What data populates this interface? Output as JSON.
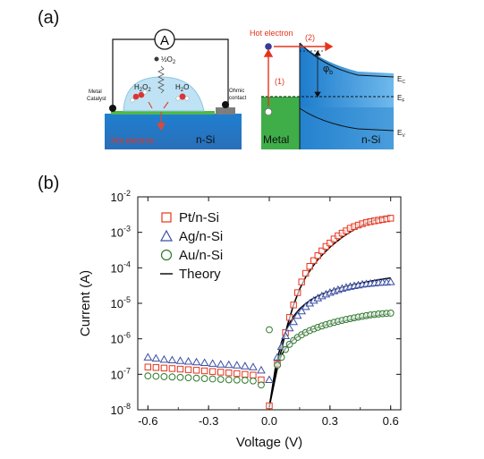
{
  "panel_a": {
    "label": "(a)",
    "left": {
      "ammeter": "A",
      "oxygen_half": "½O",
      "oxygen_sub": "2",
      "h2o2": "H",
      "h2o2_sub1": "2",
      "h2o2_o": "O",
      "h2o2_sub2": "2",
      "h2o": "H",
      "h2o_sub": "2",
      "h2o_o": "O",
      "metal_catalyst_1": "Metal",
      "metal_catalyst_2": "Catalyst",
      "ohmic_1": "Ohmic",
      "ohmic_2": "contact",
      "hot_electron": "Hot electron",
      "nsi": "n-Si"
    },
    "right": {
      "hot_electron": "Hot electron",
      "step1": "(1)",
      "step2": "(2)",
      "phi": "φ",
      "phi_sub": "b",
      "ec": "E",
      "ec_sub": "C",
      "ef": "E",
      "ef_sub": "F",
      "ev": "E",
      "ev_sub": "V",
      "metal": "Metal",
      "nsi": "n-Si"
    }
  },
  "panel_b": {
    "label": "(b)"
  },
  "colors": {
    "pt": "#e8331c",
    "ag": "#3a4fa3",
    "au": "#2b7a2b",
    "theory": "#000000",
    "silicon_blue": "#2f8fd6",
    "metal_green": "#3fae49",
    "red_text": "#e8331c"
  },
  "chart_data": {
    "type": "scatter",
    "xlabel": "Voltage (V)",
    "ylabel": "Current (A)",
    "xlim": [
      -0.65,
      0.65
    ],
    "ylim_log10": [
      -8,
      -2
    ],
    "xticks": [
      "-0.6",
      "-0.3",
      "0.0",
      "0.3",
      "0.6"
    ],
    "xtick_values": [
      -0.6,
      -0.3,
      0.0,
      0.3,
      0.6
    ],
    "yticks_exp": [
      "-8",
      "-7",
      "-6",
      "-5",
      "-4",
      "-3",
      "-2"
    ],
    "ytick_base": "10",
    "yscale": "log",
    "legend_position": "top-left",
    "series": [
      {
        "name": "Pt/n-Si",
        "marker": "square",
        "x": [
          -0.6,
          -0.56,
          -0.52,
          -0.48,
          -0.44,
          -0.4,
          -0.36,
          -0.32,
          -0.28,
          -0.24,
          -0.2,
          -0.16,
          -0.12,
          -0.08,
          -0.04,
          0.0,
          0.04,
          0.08,
          0.1,
          0.12,
          0.14,
          0.16,
          0.18,
          0.2,
          0.22,
          0.24,
          0.26,
          0.28,
          0.3,
          0.32,
          0.34,
          0.36,
          0.38,
          0.4,
          0.42,
          0.44,
          0.46,
          0.48,
          0.5,
          0.52,
          0.54,
          0.56,
          0.58,
          0.6
        ],
        "y": [
          1.6e-07,
          1.55e-07,
          1.5e-07,
          1.45e-07,
          1.4e-07,
          1.35e-07,
          1.3e-07,
          1.25e-07,
          1.2e-07,
          1.15e-07,
          1.1e-07,
          1.05e-07,
          1e-07,
          9.5e-08,
          7e-08,
          1.3e-08,
          2e-07,
          1.5e-06,
          4e-06,
          9e-06,
          2e-05,
          4e-05,
          7e-05,
          0.00011,
          0.00016,
          0.00022,
          0.0003,
          0.0004,
          0.0005,
          0.00065,
          0.0008,
          0.00095,
          0.0011,
          0.0013,
          0.00145,
          0.0016,
          0.00175,
          0.0019,
          0.002,
          0.0021,
          0.0022,
          0.0023,
          0.0024,
          0.0025
        ]
      },
      {
        "name": "Ag/n-Si",
        "marker": "triangle",
        "x": [
          -0.6,
          -0.56,
          -0.52,
          -0.48,
          -0.44,
          -0.4,
          -0.36,
          -0.32,
          -0.28,
          -0.24,
          -0.2,
          -0.16,
          -0.12,
          -0.08,
          -0.04,
          0.0,
          0.04,
          0.06,
          0.08,
          0.1,
          0.12,
          0.14,
          0.16,
          0.18,
          0.2,
          0.22,
          0.24,
          0.26,
          0.28,
          0.3,
          0.32,
          0.34,
          0.36,
          0.38,
          0.4,
          0.42,
          0.44,
          0.46,
          0.48,
          0.5,
          0.52,
          0.54,
          0.56,
          0.58,
          0.6
        ],
        "y": [
          3e-07,
          2.8e-07,
          2.6e-07,
          2.5e-07,
          2.4e-07,
          2.3e-07,
          2.2e-07,
          2.1e-07,
          2e-07,
          1.9e-07,
          1.85e-07,
          1.8e-07,
          1.7e-07,
          1.6e-07,
          1.3e-07,
          7e-08,
          3e-07,
          6e-07,
          1.2e-06,
          2e-06,
          3e-06,
          4.5e-06,
          6e-06,
          8e-06,
          1e-05,
          1.2e-05,
          1.4e-05,
          1.6e-05,
          1.8e-05,
          2e-05,
          2.2e-05,
          2.4e-05,
          2.6e-05,
          2.8e-05,
          2.95e-05,
          3.1e-05,
          3.25e-05,
          3.4e-05,
          3.5e-05,
          3.6e-05,
          3.7e-05,
          3.8e-05,
          3.85e-05,
          3.9e-05,
          4e-05
        ]
      },
      {
        "name": "Au/n-Si",
        "marker": "circle",
        "x": [
          -0.6,
          -0.56,
          -0.52,
          -0.48,
          -0.44,
          -0.4,
          -0.36,
          -0.32,
          -0.28,
          -0.24,
          -0.2,
          -0.16,
          -0.12,
          -0.08,
          -0.04,
          0.0,
          0.04,
          0.06,
          0.08,
          0.1,
          0.12,
          0.14,
          0.16,
          0.18,
          0.2,
          0.22,
          0.24,
          0.26,
          0.28,
          0.3,
          0.32,
          0.34,
          0.36,
          0.38,
          0.4,
          0.42,
          0.44,
          0.46,
          0.48,
          0.5,
          0.52,
          0.54,
          0.56,
          0.58,
          0.6
        ],
        "y": [
          9e-08,
          8.8e-08,
          8.6e-08,
          8.4e-08,
          8.2e-08,
          8e-08,
          7.8e-08,
          7.6e-08,
          7.4e-08,
          7.2e-08,
          7e-08,
          6.9e-08,
          6.8e-08,
          6.5e-08,
          5e-08,
          1.8e-06,
          1.8e-07,
          3e-07,
          5e-07,
          7e-07,
          9e-07,
          1.1e-06,
          1.3e-06,
          1.5e-06,
          1.7e-06,
          1.9e-06,
          2.1e-06,
          2.3e-06,
          2.5e-06,
          2.7e-06,
          2.9e-06,
          3.1e-06,
          3.3e-06,
          3.5e-06,
          3.7e-06,
          3.9e-06,
          4.1e-06,
          4.3e-06,
          4.5e-06,
          4.7e-06,
          4.85e-06,
          5e-06,
          5.1e-06,
          5.2e-06,
          5.3e-06
        ]
      },
      {
        "name": "Theory",
        "marker": "line",
        "curves": [
          {
            "x": [
              0.0,
              0.03,
              0.06,
              0.09,
              0.12,
              0.15,
              0.18,
              0.21,
              0.24,
              0.27,
              0.3,
              0.33,
              0.36,
              0.39,
              0.42,
              0.45,
              0.48,
              0.51,
              0.54,
              0.57,
              0.6
            ],
            "y": [
              1.2e-08,
              8e-08,
              5e-07,
              2.5e-06,
              9e-06,
              2.5e-05,
              5.5e-05,
              0.0001,
              0.00017,
              0.00026,
              0.00038,
              0.00053,
              0.00072,
              0.00095,
              0.0012,
              0.0015,
              0.0018,
              0.0021,
              0.0024,
              0.0027,
              0.003
            ]
          },
          {
            "x": [
              0.0,
              0.03,
              0.06,
              0.09,
              0.12,
              0.15,
              0.18,
              0.21,
              0.24,
              0.27,
              0.3,
              0.33,
              0.36,
              0.39,
              0.42,
              0.45,
              0.48,
              0.51,
              0.54,
              0.57,
              0.6
            ],
            "y": [
              1.2e-08,
              1.5e-07,
              8e-07,
              2.2e-06,
              4.3e-06,
              7e-06,
              9.8e-06,
              1.3e-05,
              1.6e-05,
              1.9e-05,
              2.2e-05,
              2.5e-05,
              2.8e-05,
              3.1e-05,
              3.4e-05,
              3.7e-05,
              4e-05,
              4.3e-05,
              4.6e-05,
              4.9e-05,
              5.2e-05
            ]
          },
          {
            "x": [
              0.0,
              0.03,
              0.06,
              0.09,
              0.12,
              0.15,
              0.18,
              0.21,
              0.24,
              0.27,
              0.3,
              0.33,
              0.36,
              0.39,
              0.42,
              0.45,
              0.48,
              0.51,
              0.54,
              0.57,
              0.6
            ],
            "y": [
              1.2e-08,
              1.2e-07,
              3.5e-07,
              6.5e-07,
              9.5e-07,
              1.25e-06,
              1.55e-06,
              1.85e-06,
              2.1e-06,
              2.35e-06,
              2.6e-06,
              2.85e-06,
              3.1e-06,
              3.35e-06,
              3.6e-06,
              3.85e-06,
              4.1e-06,
              4.35e-06,
              4.6e-06,
              4.85e-06,
              5.1e-06
            ]
          }
        ]
      }
    ]
  }
}
